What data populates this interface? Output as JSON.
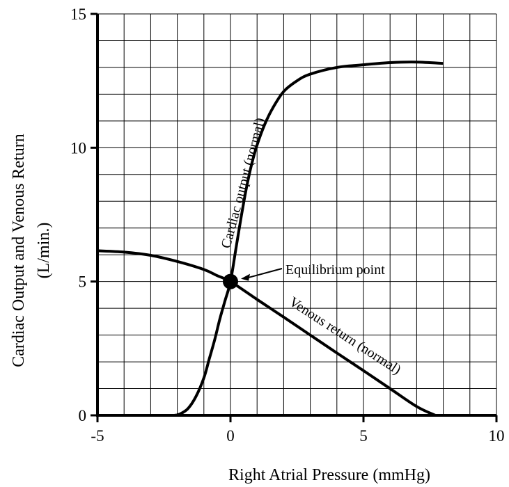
{
  "chart_data": {
    "type": "line",
    "xlabel": "Right Atrial Pressure (mmHg)",
    "ylabel_line1": "Cardiac Output and Venous Return",
    "ylabel_line2": "(L/min.)",
    "xlim": [
      -5,
      10
    ],
    "ylim": [
      0,
      15
    ],
    "x_ticks": [
      -5,
      0,
      5,
      10
    ],
    "x_tick_labels": [
      "-5",
      "0",
      "5",
      "10"
    ],
    "y_ticks": [
      0,
      5,
      10,
      15
    ],
    "y_tick_labels": [
      "0",
      "5",
      "10",
      "15"
    ],
    "minor_grid_step_x": 1,
    "minor_grid_step_y": 1,
    "grid": true,
    "series": [
      {
        "name": "Cardiac output (normal)",
        "x": [
          -2.1,
          -1.9,
          -1.6,
          -1.3,
          -1.0,
          -0.8,
          -0.6,
          -0.4,
          -0.2,
          0.0,
          0.2,
          0.4,
          0.6,
          0.8,
          1.0,
          1.3,
          1.6,
          2.0,
          2.5,
          3.0,
          4.0,
          5.0,
          6.0,
          7.0,
          8.0
        ],
        "y": [
          0.0,
          0.05,
          0.25,
          0.7,
          1.4,
          2.1,
          2.8,
          3.6,
          4.3,
          5.0,
          6.2,
          7.4,
          8.5,
          9.4,
          10.1,
          10.9,
          11.5,
          12.1,
          12.5,
          12.75,
          13.0,
          13.1,
          13.18,
          13.2,
          13.15
        ]
      },
      {
        "name": "Venous return (normal)",
        "x": [
          -5.0,
          -4.0,
          -3.0,
          -2.0,
          -1.0,
          -0.5,
          0.0,
          1.0,
          2.0,
          3.0,
          4.0,
          5.0,
          6.0,
          7.0,
          7.7
        ],
        "y": [
          6.15,
          6.1,
          5.98,
          5.75,
          5.45,
          5.22,
          5.0,
          4.33,
          3.67,
          3.0,
          2.33,
          1.67,
          1.0,
          0.33,
          0.0
        ]
      }
    ],
    "equilibrium_point": {
      "x": 0,
      "y": 5,
      "label": "Equilibrium point"
    },
    "curve_labels": {
      "cardiac_output": "Cardiac output (normal)",
      "venous_return": "Venous return (normal)"
    }
  }
}
